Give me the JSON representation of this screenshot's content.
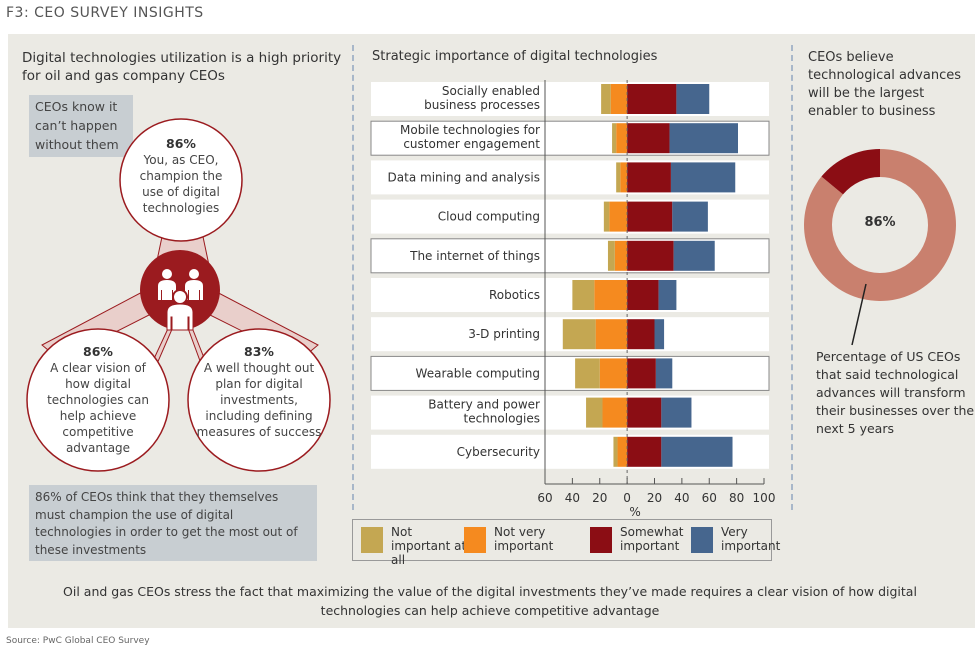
{
  "figure_title": "F3: CEO SURVEY INSIGHTS",
  "source": "Source: PwC Global CEO Survey",
  "left": {
    "title": "Digital technologies utilization is a high priority for oil and gas company CEOs",
    "callout": "CEOs know it can’t happen without them",
    "bubbles": [
      {
        "pct": "86%",
        "text": "You, as CEO, champion the use of digital technologies"
      },
      {
        "pct": "86%",
        "text": "A clear vision of how digital technologies can help achieve competitive advantage"
      },
      {
        "pct": "83%",
        "text": "A well thought out plan for digital investments, including defining measures of success"
      }
    ],
    "bottom_note": "86% of CEOs think that they themselves must champion the use of digital technologies in order to get the most out of these investments"
  },
  "right": {
    "title": "CEOs believe technological advances will be the largest enabler to business",
    "donut_value_label": "86%",
    "donut_description": "Percentage of US CEOs that said technological advances will transform their businesses over the next 5 years"
  },
  "bottom_caption": "Oil and gas CEOs stress the fact that maximizing the value of the digital investments they’ve made requires a clear vision of how digital technologies can help achieve competitive advantage",
  "colors": {
    "not_at_all": "#c4a752",
    "not_very": "#f58a1f",
    "somewhat": "#8b0d14",
    "very": "#46668e",
    "donut_main": "#c9806e",
    "donut_rest": "#8b0d14",
    "brand_red": "#9b1b1f"
  },
  "chart_data": [
    {
      "type": "bar",
      "subtype": "diverging-stacked-horizontal",
      "title": "Strategic importance of digital technologies",
      "xlabel": "%",
      "ylabel": "",
      "xlim": [
        -60,
        100
      ],
      "xticks": [
        -60,
        -40,
        -20,
        0,
        20,
        40,
        60,
        80,
        100
      ],
      "xtick_labels": [
        "60",
        "40",
        "20",
        "0",
        "20",
        "40",
        "60",
        "80",
        "100"
      ],
      "legend_position": "bottom",
      "categories": [
        "Socially enabled business processes",
        "Mobile technologies for customer engagement",
        "Data mining and analysis",
        "Cloud computing",
        "The internet of things",
        "Robotics",
        "3-D printing",
        "Wearable computing",
        "Battery and power technologies",
        "Cybersecurity"
      ],
      "highlighted_categories": [
        "Mobile technologies for customer engagement",
        "The internet of things",
        "Wearable computing"
      ],
      "series": [
        {
          "name": "Not important at all",
          "side": "negative",
          "values": [
            7,
            3,
            3,
            4,
            5,
            16,
            24,
            18,
            12,
            3
          ]
        },
        {
          "name": "Not very important",
          "side": "negative",
          "values": [
            12,
            8,
            5,
            13,
            9,
            24,
            23,
            20,
            18,
            7
          ]
        },
        {
          "name": "Somewhat important",
          "side": "positive",
          "values": [
            36,
            31,
            32,
            33,
            34,
            23,
            20,
            21,
            25,
            25
          ]
        },
        {
          "name": "Very important",
          "side": "positive",
          "values": [
            24,
            50,
            47,
            26,
            30,
            13,
            7,
            12,
            22,
            52
          ]
        }
      ]
    },
    {
      "type": "pie",
      "subtype": "donut",
      "title": "CEOs believe technological advances will be the largest enabler to business",
      "labels": [
        "Will transform their businesses",
        "Other"
      ],
      "values": [
        86,
        14
      ],
      "center_label": "86%"
    }
  ]
}
